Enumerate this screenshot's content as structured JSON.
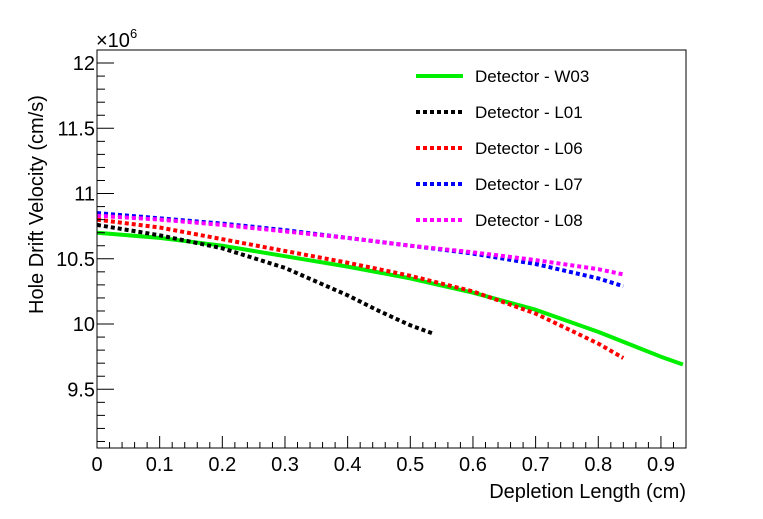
{
  "chart_data": {
    "type": "line",
    "title": "",
    "xlabel": "Depletion Length (cm)",
    "ylabel": "Hole Drift Velocity (cm/s)",
    "y_multiplier": "×10",
    "y_multiplier_exponent": "6",
    "xlim": [
      0,
      0.94
    ],
    "ylim": [
      9.05,
      12.1
    ],
    "x_ticks": [
      0,
      0.1,
      0.2,
      0.3,
      0.4,
      0.5,
      0.6,
      0.7,
      0.8,
      0.9
    ],
    "x_tick_labels": [
      "0",
      "0.1",
      "0.2",
      "0.3",
      "0.4",
      "0.5",
      "0.6",
      "0.7",
      "0.8",
      "0.9"
    ],
    "y_ticks": [
      9.5,
      10,
      10.5,
      11,
      11.5,
      12
    ],
    "y_tick_labels": [
      "9.5",
      "10",
      "10.5",
      "11",
      "11.5",
      "12"
    ],
    "legend_position": "top-right",
    "series": [
      {
        "name": "Detector - W03",
        "color": "#00ee00",
        "style": "solid",
        "x": [
          0,
          0.1,
          0.2,
          0.3,
          0.4,
          0.5,
          0.6,
          0.7,
          0.8,
          0.9,
          0.935
        ],
        "y": [
          10.7,
          10.66,
          10.6,
          10.52,
          10.44,
          10.35,
          10.24,
          10.11,
          9.94,
          9.75,
          9.69
        ]
      },
      {
        "name": "Detector - L01",
        "color": "#000000",
        "style": "dotted",
        "x": [
          0,
          0.1,
          0.2,
          0.3,
          0.4,
          0.45,
          0.5,
          0.535
        ],
        "y": [
          10.76,
          10.68,
          10.58,
          10.43,
          10.22,
          10.1,
          9.99,
          9.93
        ]
      },
      {
        "name": "Detector - L06",
        "color": "#ff0000",
        "style": "dotted",
        "x": [
          0,
          0.1,
          0.2,
          0.3,
          0.4,
          0.5,
          0.6,
          0.7,
          0.8,
          0.84
        ],
        "y": [
          10.8,
          10.74,
          10.65,
          10.56,
          10.47,
          10.37,
          10.25,
          10.08,
          9.85,
          9.74
        ]
      },
      {
        "name": "Detector - L07",
        "color": "#0000ff",
        "style": "dotted",
        "x": [
          0,
          0.1,
          0.2,
          0.3,
          0.4,
          0.5,
          0.6,
          0.7,
          0.8,
          0.84
        ],
        "y": [
          10.85,
          10.81,
          10.77,
          10.72,
          10.66,
          10.6,
          10.54,
          10.46,
          10.35,
          10.29
        ]
      },
      {
        "name": "Detector - L08",
        "color": "#ff00ff",
        "style": "dotted",
        "x": [
          0,
          0.1,
          0.2,
          0.3,
          0.4,
          0.5,
          0.6,
          0.7,
          0.8,
          0.84
        ],
        "y": [
          10.83,
          10.8,
          10.76,
          10.71,
          10.66,
          10.6,
          10.55,
          10.49,
          10.42,
          10.38
        ]
      }
    ]
  }
}
